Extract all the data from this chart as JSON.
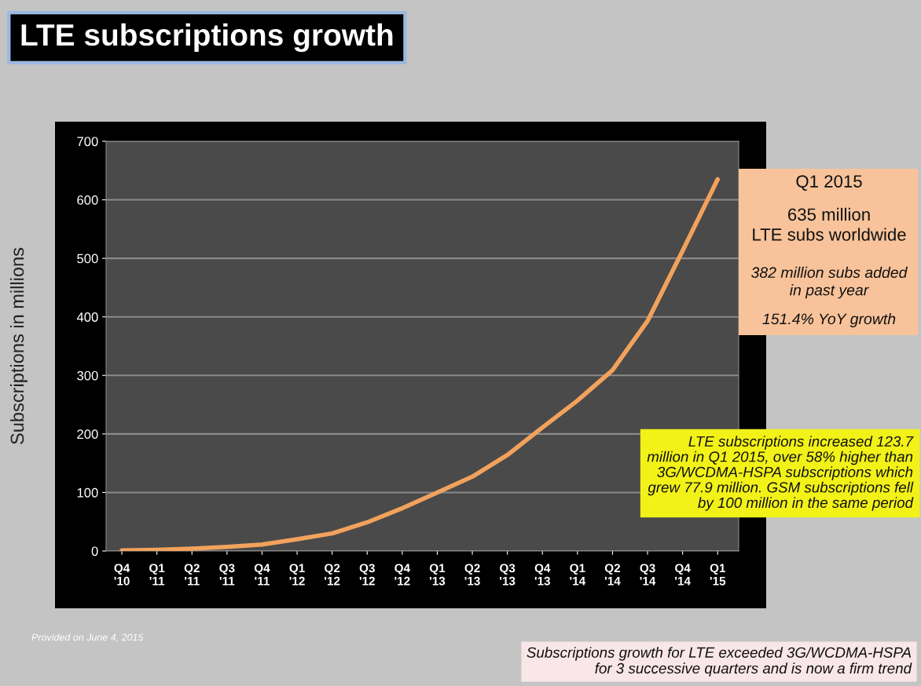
{
  "chart_data": {
    "type": "line",
    "title": "LTE subscriptions growth",
    "ylabel": "Subscriptions in millions",
    "categories": [
      "Q4\n'10",
      "Q1\n'11",
      "Q2\n'11",
      "Q3\n'11",
      "Q4\n'11",
      "Q1\n'12",
      "Q2\n'12",
      "Q3\n'12",
      "Q4\n'12",
      "Q1\n'13",
      "Q2\n'13",
      "Q3\n'13",
      "Q4\n'13",
      "Q1\n'14",
      "Q2\n'14",
      "Q3\n'14",
      "Q4\n'14",
      "Q1\n'15"
    ],
    "series": [
      {
        "color": "#f2a25c",
        "values": [
          1,
          2,
          4,
          7,
          11,
          20,
          30,
          49,
          73,
          100,
          127,
          164,
          211,
          257,
          309,
          393,
          513,
          635
        ]
      }
    ],
    "ylim": [
      0,
      700
    ],
    "yticks": [
      0,
      100,
      200,
      300,
      400,
      500,
      600,
      700
    ],
    "grid": "y",
    "marker": "none",
    "line_style": "solid",
    "annotations": [
      "Q1 2015",
      "635 million\nLTE subs worldwide",
      "382 million subs added\nin past year",
      "151.4% YoY growth",
      "LTE subscriptions increased 123.7\nmillion in Q1 2015, over 58% higher than\n3G/WCDMA-HSPA subscriptions which\ngrew 77.9 million. GSM subscriptions fell\nby 100 million in the same period",
      "Provided on June 4, 2015",
      "Subscriptions growth for LTE exceeded 3G/WCDMA-HSPA\nfor 3 successive quarters and is now a firm trend"
    ]
  }
}
